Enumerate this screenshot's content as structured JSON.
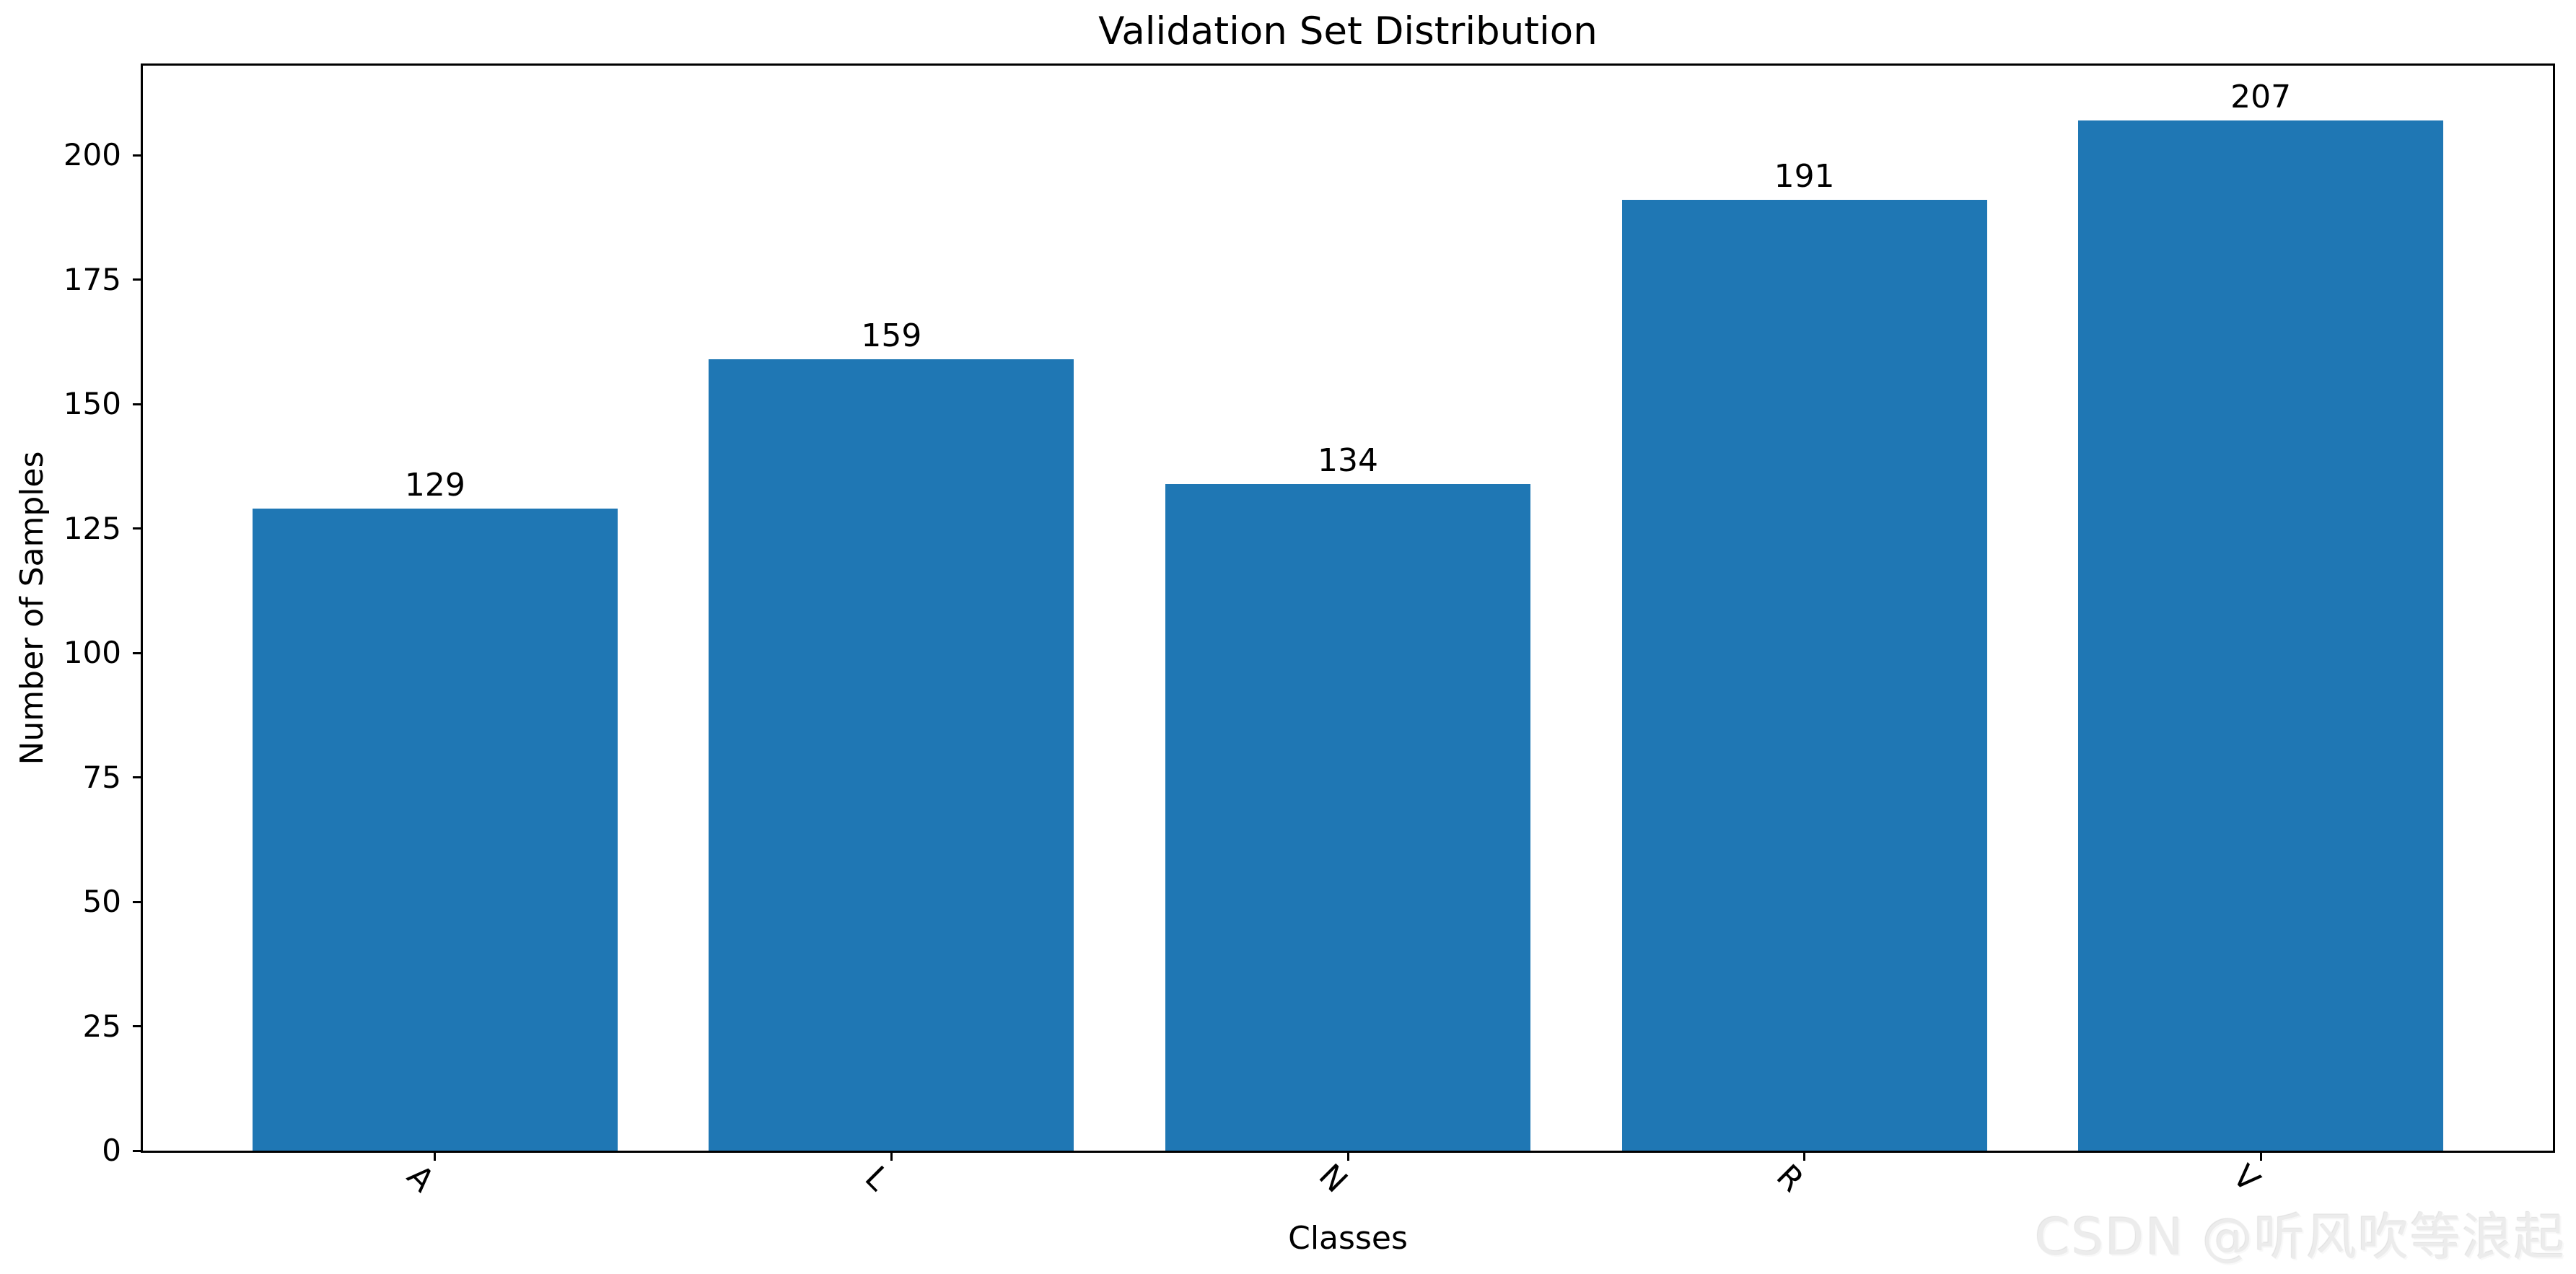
{
  "chart_data": {
    "type": "bar",
    "title": "Validation Set Distribution",
    "xlabel": "Classes",
    "ylabel": "Number of Samples",
    "categories": [
      "A",
      "L",
      "N",
      "R",
      "V"
    ],
    "values": [
      129,
      159,
      134,
      191,
      207
    ],
    "bar_value_labels": [
      "129",
      "159",
      "134",
      "191",
      "207"
    ],
    "yticks": [
      0,
      25,
      50,
      75,
      100,
      125,
      150,
      175,
      200
    ],
    "ylim": [
      0,
      218
    ],
    "x_units_span": 5.28,
    "x_first_center_units": 0.64,
    "bar_width_units": 0.8,
    "bar_color": "#1f77b4",
    "axis_color": "#000000",
    "x_tick_rotation_deg": 45,
    "grid": false,
    "legend": "none"
  },
  "watermark": {
    "text": "CSDN @听风吹等浪起",
    "color": "#ececec"
  }
}
